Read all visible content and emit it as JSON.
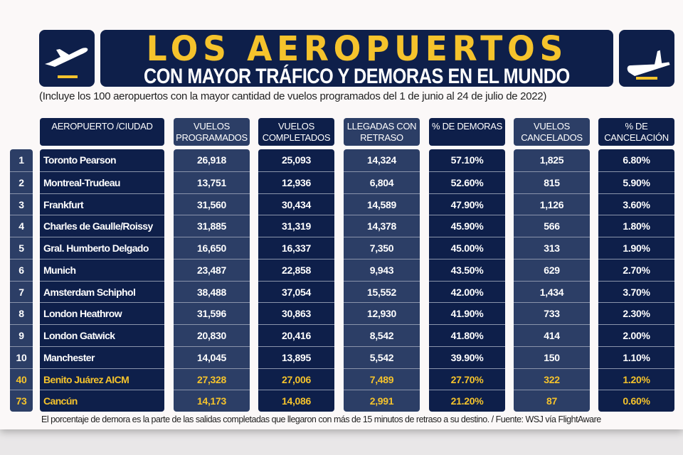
{
  "title": {
    "line1": "LOS AEROPUERTOS",
    "line2": "CON MAYOR TRÁFICO Y DEMORAS EN EL MUNDO"
  },
  "subtitle": "(Incluye los 100 aeropuertos con la mayor cantidad de vuelos programados del 1 de junio al 24 de julio de 2022)",
  "colors": {
    "navy": "#0e1f4a",
    "slate": "#2c3e66",
    "yellow": "#f5c32c"
  },
  "columns": [
    {
      "key": "airport",
      "label": "AEROPUERTO /CIUDAD"
    },
    {
      "key": "scheduled",
      "label": "VUELOS PROGRAMADOS"
    },
    {
      "key": "completed",
      "label": "VUELOS COMPLETADOS"
    },
    {
      "key": "delayed",
      "label": "LLEGADAS CON RETRASO"
    },
    {
      "key": "delay_pct",
      "label": "% DE DEMORAS"
    },
    {
      "key": "cancelled",
      "label": "VUELOS CANCELADOS"
    },
    {
      "key": "cancel_pct",
      "label": "% DE CANCELACIÓN"
    }
  ],
  "rows": [
    {
      "rank": "1",
      "airport": "Toronto Pearson",
      "scheduled": "26,918",
      "completed": "25,093",
      "delayed": "14,324",
      "delay_pct": "57.10%",
      "cancelled": "1,825",
      "cancel_pct": "6.80%"
    },
    {
      "rank": "2",
      "airport": "Montreal-Trudeau",
      "scheduled": "13,751",
      "completed": "12,936",
      "delayed": "6,804",
      "delay_pct": "52.60%",
      "cancelled": "815",
      "cancel_pct": "5.90%"
    },
    {
      "rank": "3",
      "airport": "Frankfurt",
      "scheduled": "31,560",
      "completed": "30,434",
      "delayed": "14,589",
      "delay_pct": "47.90%",
      "cancelled": "1,126",
      "cancel_pct": "3.60%"
    },
    {
      "rank": "4",
      "airport": "Charles de Gaulle/Roissy",
      "scheduled": "31,885",
      "completed": "31,319",
      "delayed": "14,378",
      "delay_pct": "45.90%",
      "cancelled": "566",
      "cancel_pct": "1.80%"
    },
    {
      "rank": "5",
      "airport": "Gral. Humberto Delgado",
      "scheduled": "16,650",
      "completed": "16,337",
      "delayed": "7,350",
      "delay_pct": "45.00%",
      "cancelled": "313",
      "cancel_pct": "1.90%"
    },
    {
      "rank": "6",
      "airport": "Munich",
      "scheduled": "23,487",
      "completed": "22,858",
      "delayed": "9,943",
      "delay_pct": "43.50%",
      "cancelled": "629",
      "cancel_pct": "2.70%"
    },
    {
      "rank": "7",
      "airport": "Amsterdam Schiphol",
      "scheduled": "38,488",
      "completed": "37,054",
      "delayed": "15,552",
      "delay_pct": "42.00%",
      "cancelled": "1,434",
      "cancel_pct": "3.70%"
    },
    {
      "rank": "8",
      "airport": "London Heathrow",
      "scheduled": "31,596",
      "completed": "30,863",
      "delayed": "12,930",
      "delay_pct": "41.90%",
      "cancelled": "733",
      "cancel_pct": "2.30%"
    },
    {
      "rank": "9",
      "airport": "London Gatwick",
      "scheduled": "20,830",
      "completed": "20,416",
      "delayed": "8,542",
      "delay_pct": "41.80%",
      "cancelled": "414",
      "cancel_pct": "2.00%"
    },
    {
      "rank": "10",
      "airport": "Manchester",
      "scheduled": "14,045",
      "completed": "13,895",
      "delayed": "5,542",
      "delay_pct": "39.90%",
      "cancelled": "150",
      "cancel_pct": "1.10%"
    },
    {
      "rank": "40",
      "airport": "Benito Juárez AICM",
      "scheduled": "27,328",
      "completed": "27,006",
      "delayed": "7,489",
      "delay_pct": "27.70%",
      "cancelled": "322",
      "cancel_pct": "1.20%",
      "highlight": true
    },
    {
      "rank": "73",
      "airport": "Cancún",
      "scheduled": "14,173",
      "completed": "14,086",
      "delayed": "2,991",
      "delay_pct": "21.20%",
      "cancelled": "87",
      "cancel_pct": "0.60%",
      "highlight": true
    }
  ],
  "footnote": "El porcentaje de demora es la parte de las salidas completadas que llegaron con más de 15 minutos de retraso a su destino. / Fuente: WSJ vía FlightAware"
}
